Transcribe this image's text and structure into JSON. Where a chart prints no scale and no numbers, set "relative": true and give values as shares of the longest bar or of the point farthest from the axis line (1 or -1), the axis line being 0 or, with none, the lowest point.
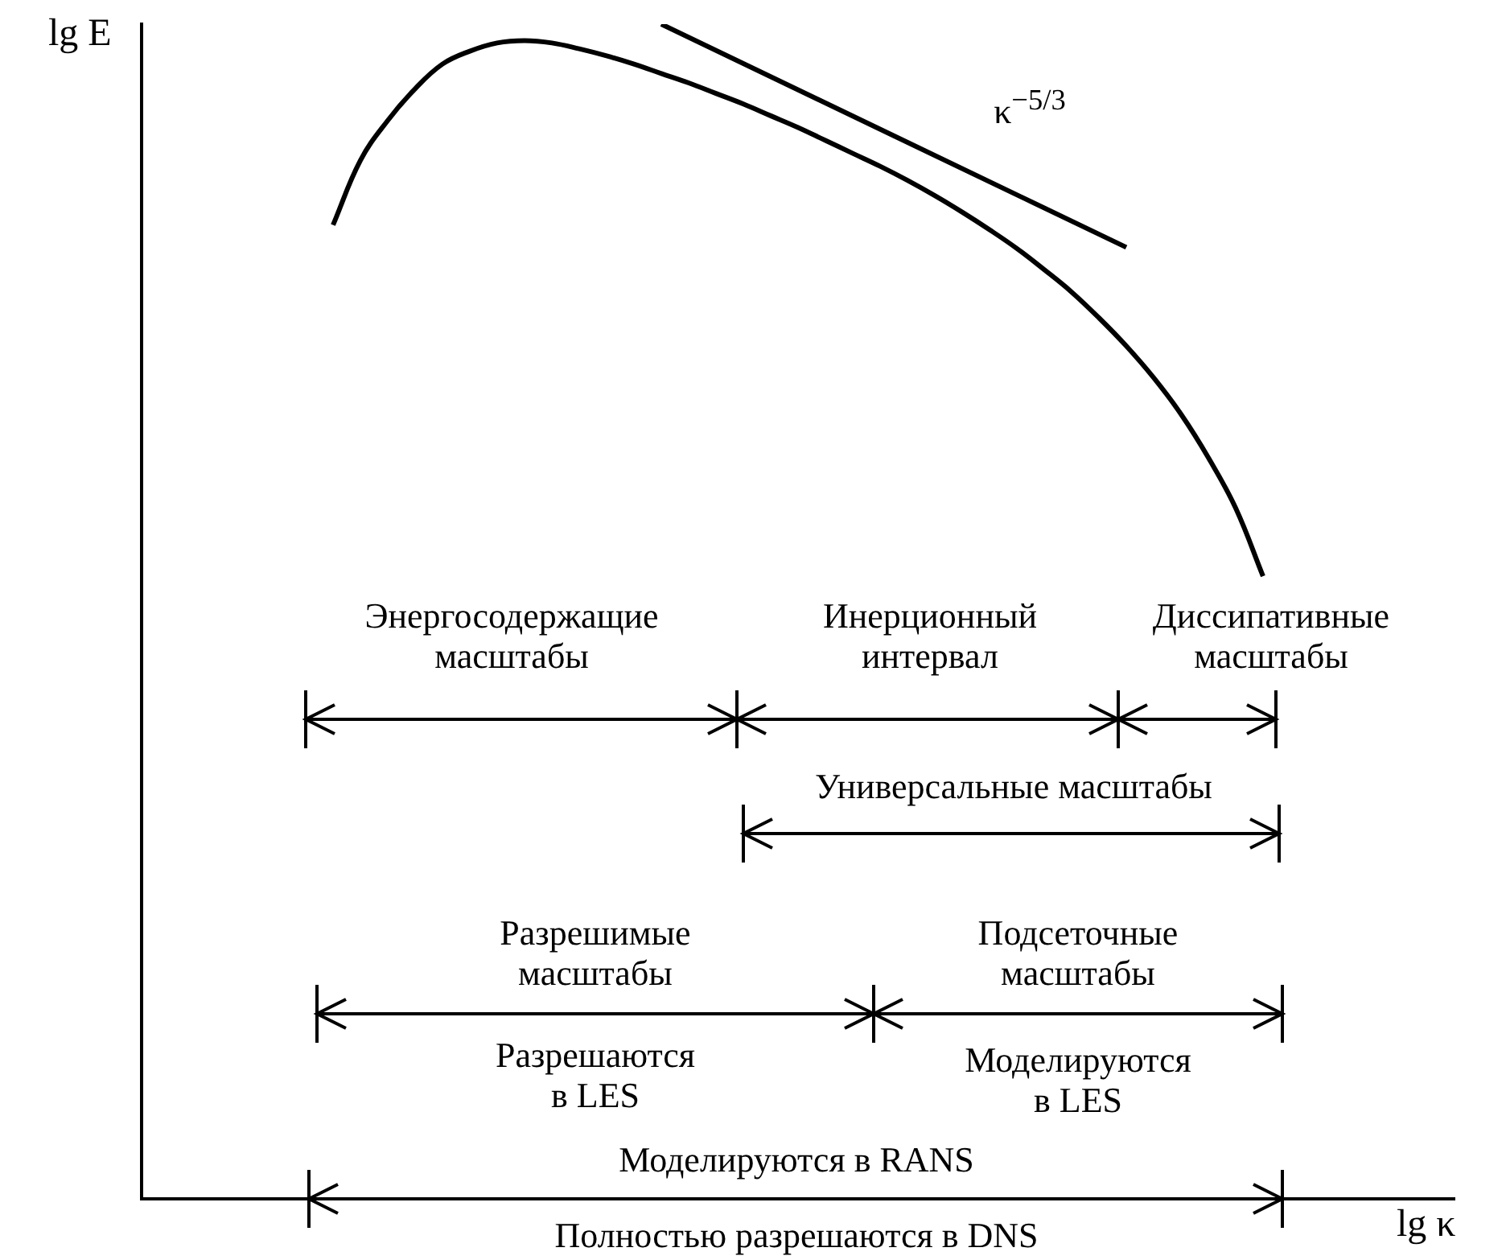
{
  "chart_data": {
    "type": "line",
    "relative": true,
    "xlabel": "lg κ",
    "ylabel": "lg E",
    "marker": "none",
    "grid": false,
    "categories": [
      null,
      null,
      null,
      null,
      null,
      null,
      null,
      null,
      null,
      null,
      null,
      null,
      null,
      null,
      null,
      null,
      null,
      null,
      null,
      null,
      null,
      null,
      null,
      null,
      null,
      null,
      null,
      null,
      null,
      null,
      null,
      null,
      null,
      null,
      null,
      null,
      null,
      null,
      null,
      null,
      null,
      null,
      null,
      null,
      null,
      null,
      null,
      null,
      null
    ],
    "series": [
      {
        "color": "#000000",
        "values": [
          null,
          null,
          null,
          null,
          null,
          null,
          null,
          0.829,
          0.884,
          0.918,
          0.945,
          0.966,
          0.977,
          0.984,
          0.986,
          0.984,
          0.979,
          0.973,
          0.966,
          0.958,
          0.95,
          0.941,
          0.932,
          0.922,
          0.912,
          0.901,
          0.89,
          0.879,
          0.867,
          0.854,
          0.84,
          0.825,
          0.809,
          0.791,
          0.772,
          0.75,
          0.726,
          0.699,
          0.668,
          0.631,
          0.588,
          0.53,
          null,
          null,
          null,
          null,
          null,
          null,
          null
        ]
      },
      {
        "name": "κ$^{−5/3}$",
        "color": "#000000",
        "values": [
          null,
          null,
          null,
          null,
          null,
          null,
          null,
          null,
          null,
          null,
          null,
          null,
          null,
          null,
          null,
          null,
          null,
          null,
          null,
          1.0,
          null,
          null,
          null,
          null,
          null,
          null,
          null,
          null,
          null,
          null,
          null,
          null,
          null,
          null,
          null,
          null,
          0.81,
          null,
          null,
          null,
          null,
          null,
          null,
          null,
          null,
          null,
          null,
          null,
          null
        ]
      }
    ],
    "annotations": [
      "Энергосодержащие\nмасштабы",
      "Инерционный\nинтервал",
      "Диссипативные\nмасштабы",
      "Универсальные масштабы",
      "Разрешимые\nмасштабы",
      "Подсеточные\nмасштабы",
      "Разрешаются\nв LES",
      "Моделируются\nв LES",
      "Моделируются в RANS",
      "Полностью разрешаются в DNS"
    ]
  }
}
